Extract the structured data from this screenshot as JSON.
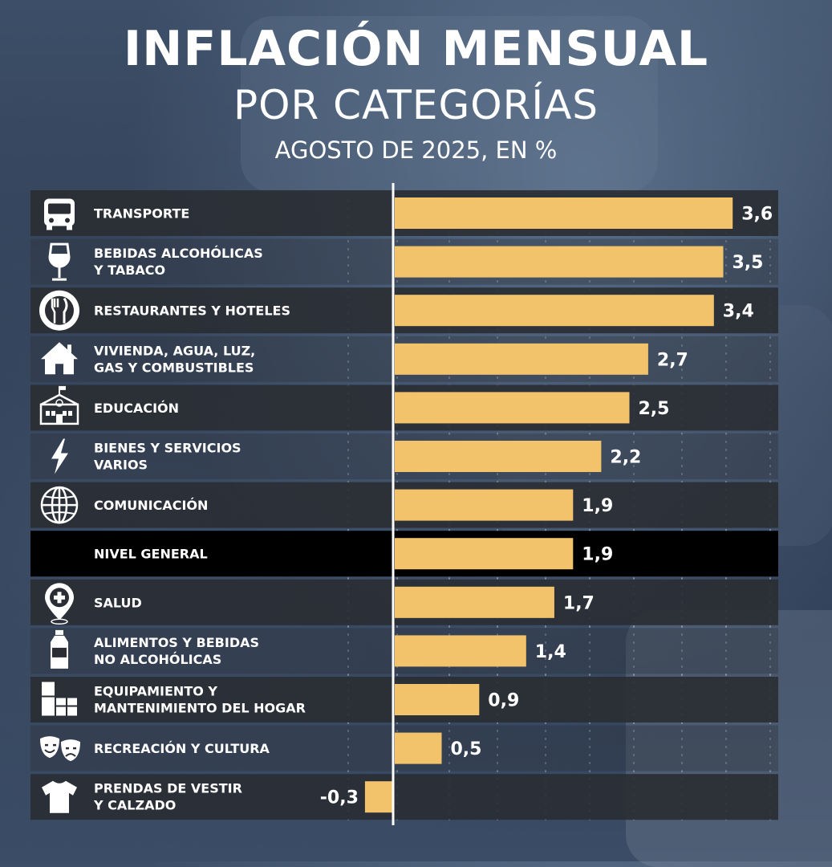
{
  "header": {
    "title": "INFLACIÓN MENSUAL",
    "subtitle": "POR CATEGORÍAS",
    "caption": "AGOSTO DE 2025, EN %"
  },
  "colors": {
    "bar": "#F2C36B",
    "row_dark": "#2a2d33",
    "row_highlight": "#000000",
    "text": "#FFFFFF"
  },
  "chart_data": {
    "type": "bar",
    "orientation": "horizontal",
    "title": "INFLACIÓN MENSUAL POR CATEGORÍAS",
    "subtitle": "AGOSTO DE 2025, EN %",
    "unit": "%",
    "xlim": [
      -0.3,
      3.6
    ],
    "categories": [
      {
        "label": [
          "TRANSPORTE"
        ],
        "value": 3.6,
        "value_label": "3,6",
        "icon": "bus-icon"
      },
      {
        "label": [
          "BEBIDAS ALCOHÓLICAS",
          "Y TABACO"
        ],
        "value": 3.5,
        "value_label": "3,5",
        "icon": "wine-glass-icon"
      },
      {
        "label": [
          "RESTAURANTES Y HOTELES"
        ],
        "value": 3.4,
        "value_label": "3,4",
        "icon": "plate-cutlery-icon"
      },
      {
        "label": [
          "VIVIENDA, AGUA, LUZ,",
          "GAS Y COMBUSTIBLES"
        ],
        "value": 2.7,
        "value_label": "2,7",
        "icon": "house-icon"
      },
      {
        "label": [
          "EDUCACIÓN"
        ],
        "value": 2.5,
        "value_label": "2,5",
        "icon": "school-icon"
      },
      {
        "label": [
          "BIENES Y SERVICIOS",
          "VARIOS"
        ],
        "value": 2.2,
        "value_label": "2,2",
        "icon": "lightning-icon"
      },
      {
        "label": [
          "COMUNICACIÓN"
        ],
        "value": 1.9,
        "value_label": "1,9",
        "icon": "globe-icon"
      },
      {
        "label": [
          "NIVEL GENERAL"
        ],
        "value": 1.9,
        "value_label": "1,9",
        "icon": "",
        "highlight": true
      },
      {
        "label": [
          "SALUD"
        ],
        "value": 1.7,
        "value_label": "1,7",
        "icon": "health-pin-icon"
      },
      {
        "label": [
          "ALIMENTOS Y BEBIDAS",
          "NO ALCOHÓLICAS"
        ],
        "value": 1.4,
        "value_label": "1,4",
        "icon": "bottle-icon"
      },
      {
        "label": [
          "EQUIPAMIENTO Y",
          "MANTENIMIENTO DEL HOGAR"
        ],
        "value": 0.9,
        "value_label": "0,9",
        "icon": "furniture-icon"
      },
      {
        "label": [
          "RECREACIÓN Y CULTURA"
        ],
        "value": 0.5,
        "value_label": "0,5",
        "icon": "theater-masks-icon"
      },
      {
        "label": [
          "PRENDAS DE VESTIR",
          "Y CALZADO"
        ],
        "value": -0.3,
        "value_label": "-0,3",
        "icon": "tshirt-icon"
      }
    ]
  }
}
